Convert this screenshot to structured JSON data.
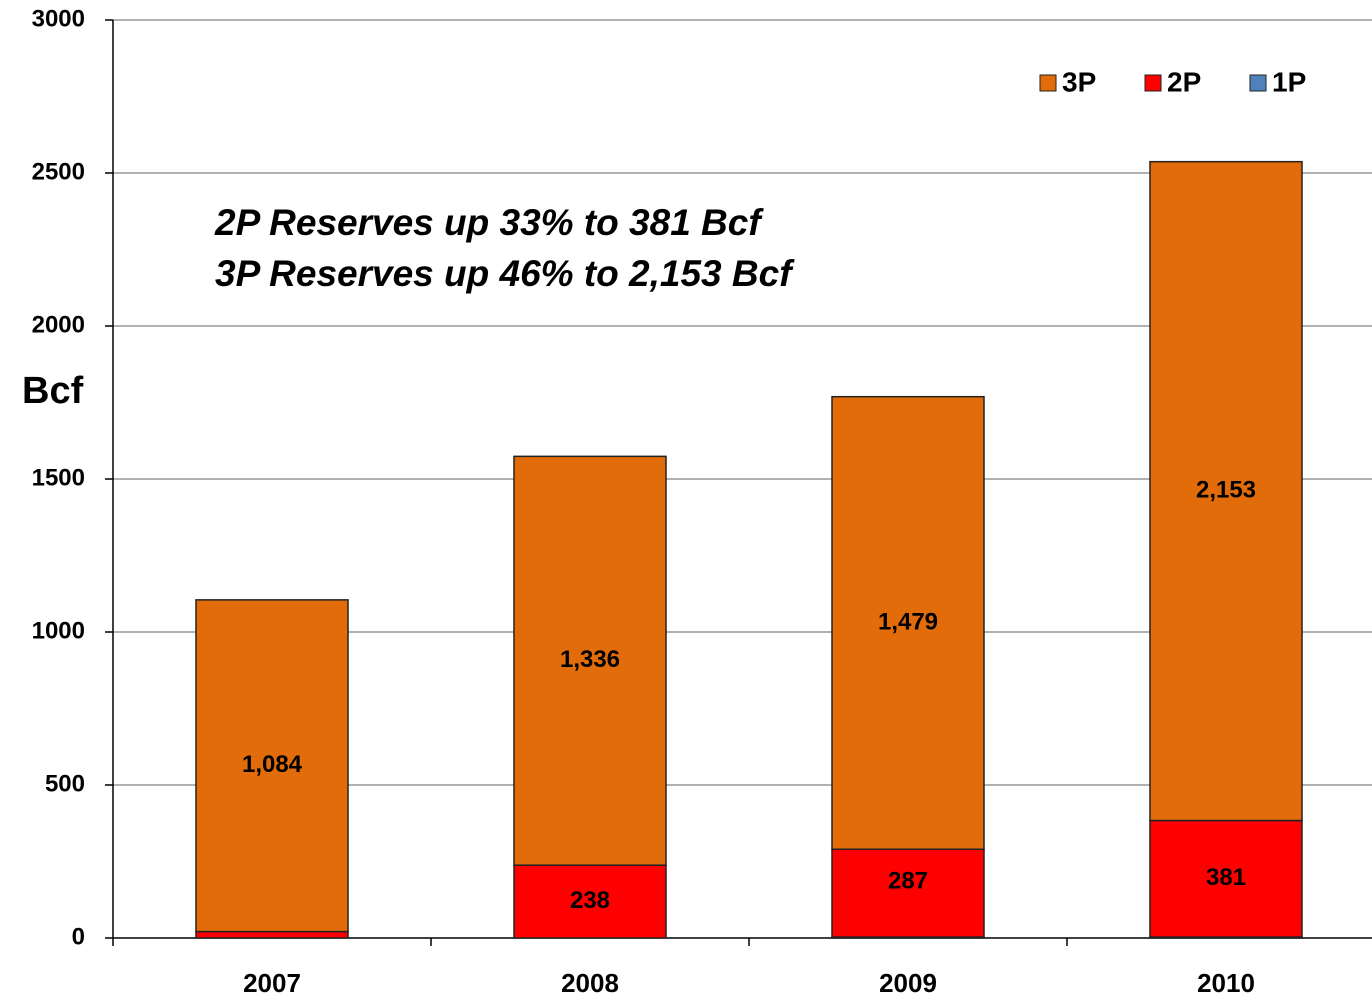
{
  "chart_data": {
    "type": "stacked_bar",
    "y_label": "Bcf",
    "annotations": [
      "2P Reserves up 33% to 381 Bcf",
      "3P Reserves up 46% to 2,153 Bcf"
    ],
    "categories": [
      "2007",
      "2008",
      "2009",
      "2010"
    ],
    "series": [
      {
        "name": "1P",
        "color": "#4f81bd",
        "values": [
          null,
          null,
          3,
          3
        ]
      },
      {
        "name": "2P",
        "color": "#ff0000",
        "values": [
          21,
          238,
          287,
          381
        ]
      },
      {
        "name": "3P",
        "color": "#e36c0a",
        "values": [
          1084,
          1336,
          1479,
          2153
        ],
        "value_labels": [
          "1,084",
          "1,336",
          "1,479",
          "2,153"
        ]
      }
    ],
    "legend_order": [
      "3P",
      "2P",
      "1P"
    ],
    "ylim": [
      0,
      3000
    ],
    "yticks": [
      0,
      500,
      1000,
      1500,
      2000,
      2500,
      3000
    ],
    "grid": true,
    "legend": "upper right"
  }
}
